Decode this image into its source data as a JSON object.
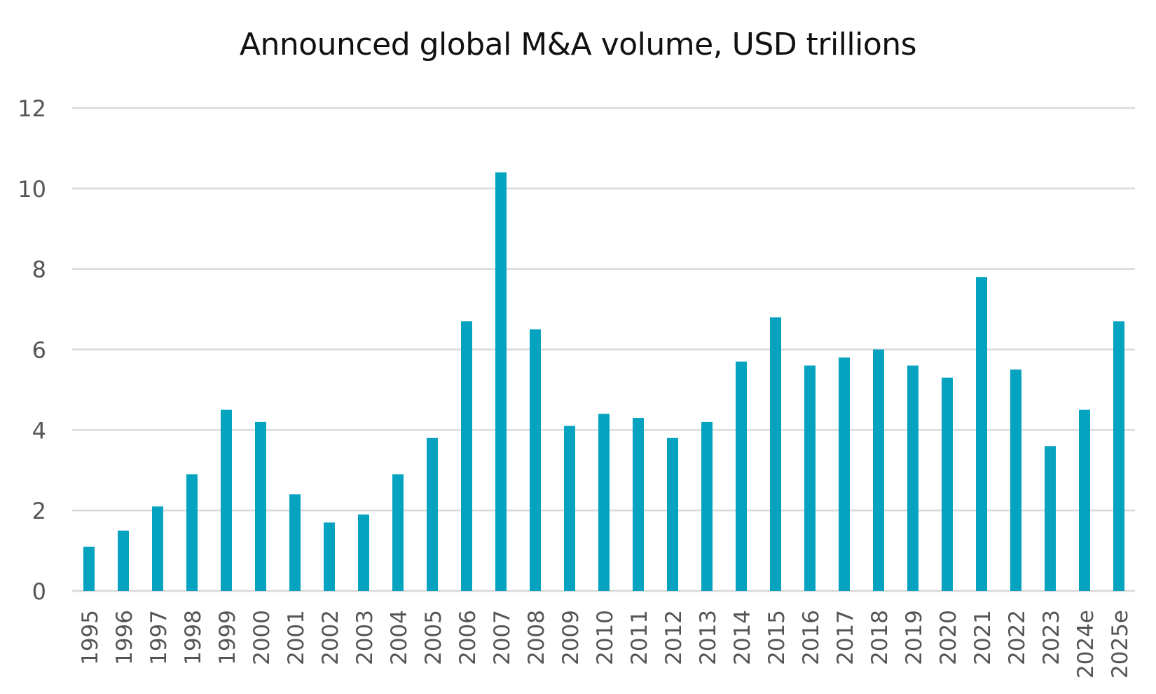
{
  "chart_data": {
    "type": "bar",
    "title": "Announced global M&A volume, USD trillions",
    "xlabel": "",
    "ylabel": "",
    "categories": [
      "1995",
      "1996",
      "1997",
      "1998",
      "1999",
      "2000",
      "2001",
      "2002",
      "2003",
      "2004",
      "2005",
      "2006",
      "2007",
      "2008",
      "2009",
      "2010",
      "2011",
      "2012",
      "2013",
      "2014",
      "2015",
      "2016",
      "2017",
      "2018",
      "2019",
      "2020",
      "2021",
      "2022",
      "2023",
      "2024e",
      "2025e"
    ],
    "values": [
      1.1,
      1.5,
      2.1,
      2.9,
      4.5,
      4.2,
      2.4,
      1.7,
      1.9,
      2.9,
      3.8,
      6.7,
      10.4,
      6.5,
      4.1,
      4.4,
      4.3,
      3.8,
      4.2,
      5.7,
      6.8,
      5.6,
      5.8,
      6.0,
      5.6,
      5.3,
      7.8,
      5.5,
      3.6,
      4.5,
      6.7
    ],
    "ylim": [
      0,
      12
    ],
    "yticks": [
      "0",
      "2",
      "4",
      "6",
      "8",
      "10",
      "12"
    ],
    "grid": true,
    "legend": "none",
    "bar_color": "#05a3c0",
    "grid_color": "#d9d9d9"
  }
}
